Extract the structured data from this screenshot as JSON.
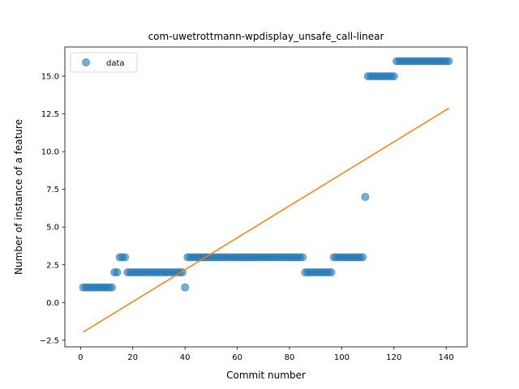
{
  "chart_data": {
    "type": "scatter",
    "title": "com-uwetrottmann-wpdisplay_unsafe_call-linear",
    "xlabel": "Commit number",
    "ylabel": "Number of instance of a feature",
    "xlim": [
      -6.0,
      148.0
    ],
    "ylim": [
      -2.94,
      16.94
    ],
    "xticks": [
      0,
      20,
      40,
      60,
      80,
      100,
      120,
      140
    ],
    "yticks": [
      -2.5,
      0.0,
      2.5,
      5.0,
      7.5,
      10.0,
      12.5,
      15.0
    ],
    "xtick_labels": [
      "0",
      "20",
      "40",
      "60",
      "80",
      "100",
      "120",
      "140"
    ],
    "ytick_labels": [
      "−2.5",
      "0.0",
      "2.5",
      "5.0",
      "7.5",
      "10.0",
      "12.5",
      "15.0"
    ],
    "legend": {
      "position": "top-left",
      "entries": [
        "data"
      ]
    },
    "grid": false,
    "series": [
      {
        "name": "data",
        "kind": "scatter",
        "color": "#1f77b4",
        "x": [
          1,
          2,
          3,
          4,
          5,
          6,
          7,
          8,
          9,
          10,
          11,
          12,
          13,
          14,
          15,
          16,
          17,
          18,
          19,
          20,
          21,
          22,
          23,
          24,
          25,
          26,
          27,
          28,
          29,
          30,
          31,
          32,
          33,
          34,
          35,
          36,
          37,
          38,
          39,
          40,
          41,
          42,
          43,
          44,
          45,
          46,
          47,
          48,
          49,
          50,
          51,
          52,
          53,
          54,
          55,
          56,
          57,
          58,
          59,
          60,
          61,
          62,
          63,
          64,
          65,
          66,
          67,
          68,
          69,
          70,
          71,
          72,
          73,
          74,
          75,
          76,
          77,
          78,
          79,
          80,
          81,
          82,
          83,
          84,
          85,
          86,
          87,
          88,
          89,
          90,
          91,
          92,
          93,
          94,
          95,
          96,
          97,
          98,
          99,
          100,
          101,
          102,
          103,
          104,
          105,
          106,
          107,
          108,
          109,
          110,
          111,
          112,
          113,
          114,
          115,
          116,
          117,
          118,
          119,
          120,
          121,
          122,
          123,
          124,
          125,
          126,
          127,
          128,
          129,
          130,
          131,
          132,
          133,
          134,
          135,
          136,
          137,
          138,
          139,
          140,
          141
        ],
        "y": [
          1,
          1,
          1,
          1,
          1,
          1,
          1,
          1,
          1,
          1,
          1,
          1,
          2,
          2,
          3,
          3,
          3,
          2,
          2,
          2,
          2,
          2,
          2,
          2,
          2,
          2,
          2,
          2,
          2,
          2,
          2,
          2,
          2,
          2,
          2,
          2,
          2,
          2,
          2,
          1,
          3,
          3,
          3,
          3,
          3,
          3,
          3,
          3,
          3,
          3,
          3,
          3,
          3,
          3,
          3,
          3,
          3,
          3,
          3,
          3,
          3,
          3,
          3,
          3,
          3,
          3,
          3,
          3,
          3,
          3,
          3,
          3,
          3,
          3,
          3,
          3,
          3,
          3,
          3,
          3,
          3,
          3,
          3,
          3,
          3,
          2,
          2,
          2,
          2,
          2,
          2,
          2,
          2,
          2,
          2,
          2,
          3,
          3,
          3,
          3,
          3,
          3,
          3,
          3,
          3,
          3,
          3,
          3,
          7,
          15,
          15,
          15,
          15,
          15,
          15,
          15,
          15,
          15,
          15,
          15,
          16,
          16,
          16,
          16,
          16,
          16,
          16,
          16,
          16,
          16,
          16,
          16,
          16,
          16,
          16,
          16,
          16,
          16,
          16,
          16,
          16
        ]
      },
      {
        "name": "",
        "kind": "line",
        "color": "#ff7f0e",
        "x": [
          1,
          141
        ],
        "y": [
          -1.96,
          12.88
        ]
      }
    ]
  }
}
